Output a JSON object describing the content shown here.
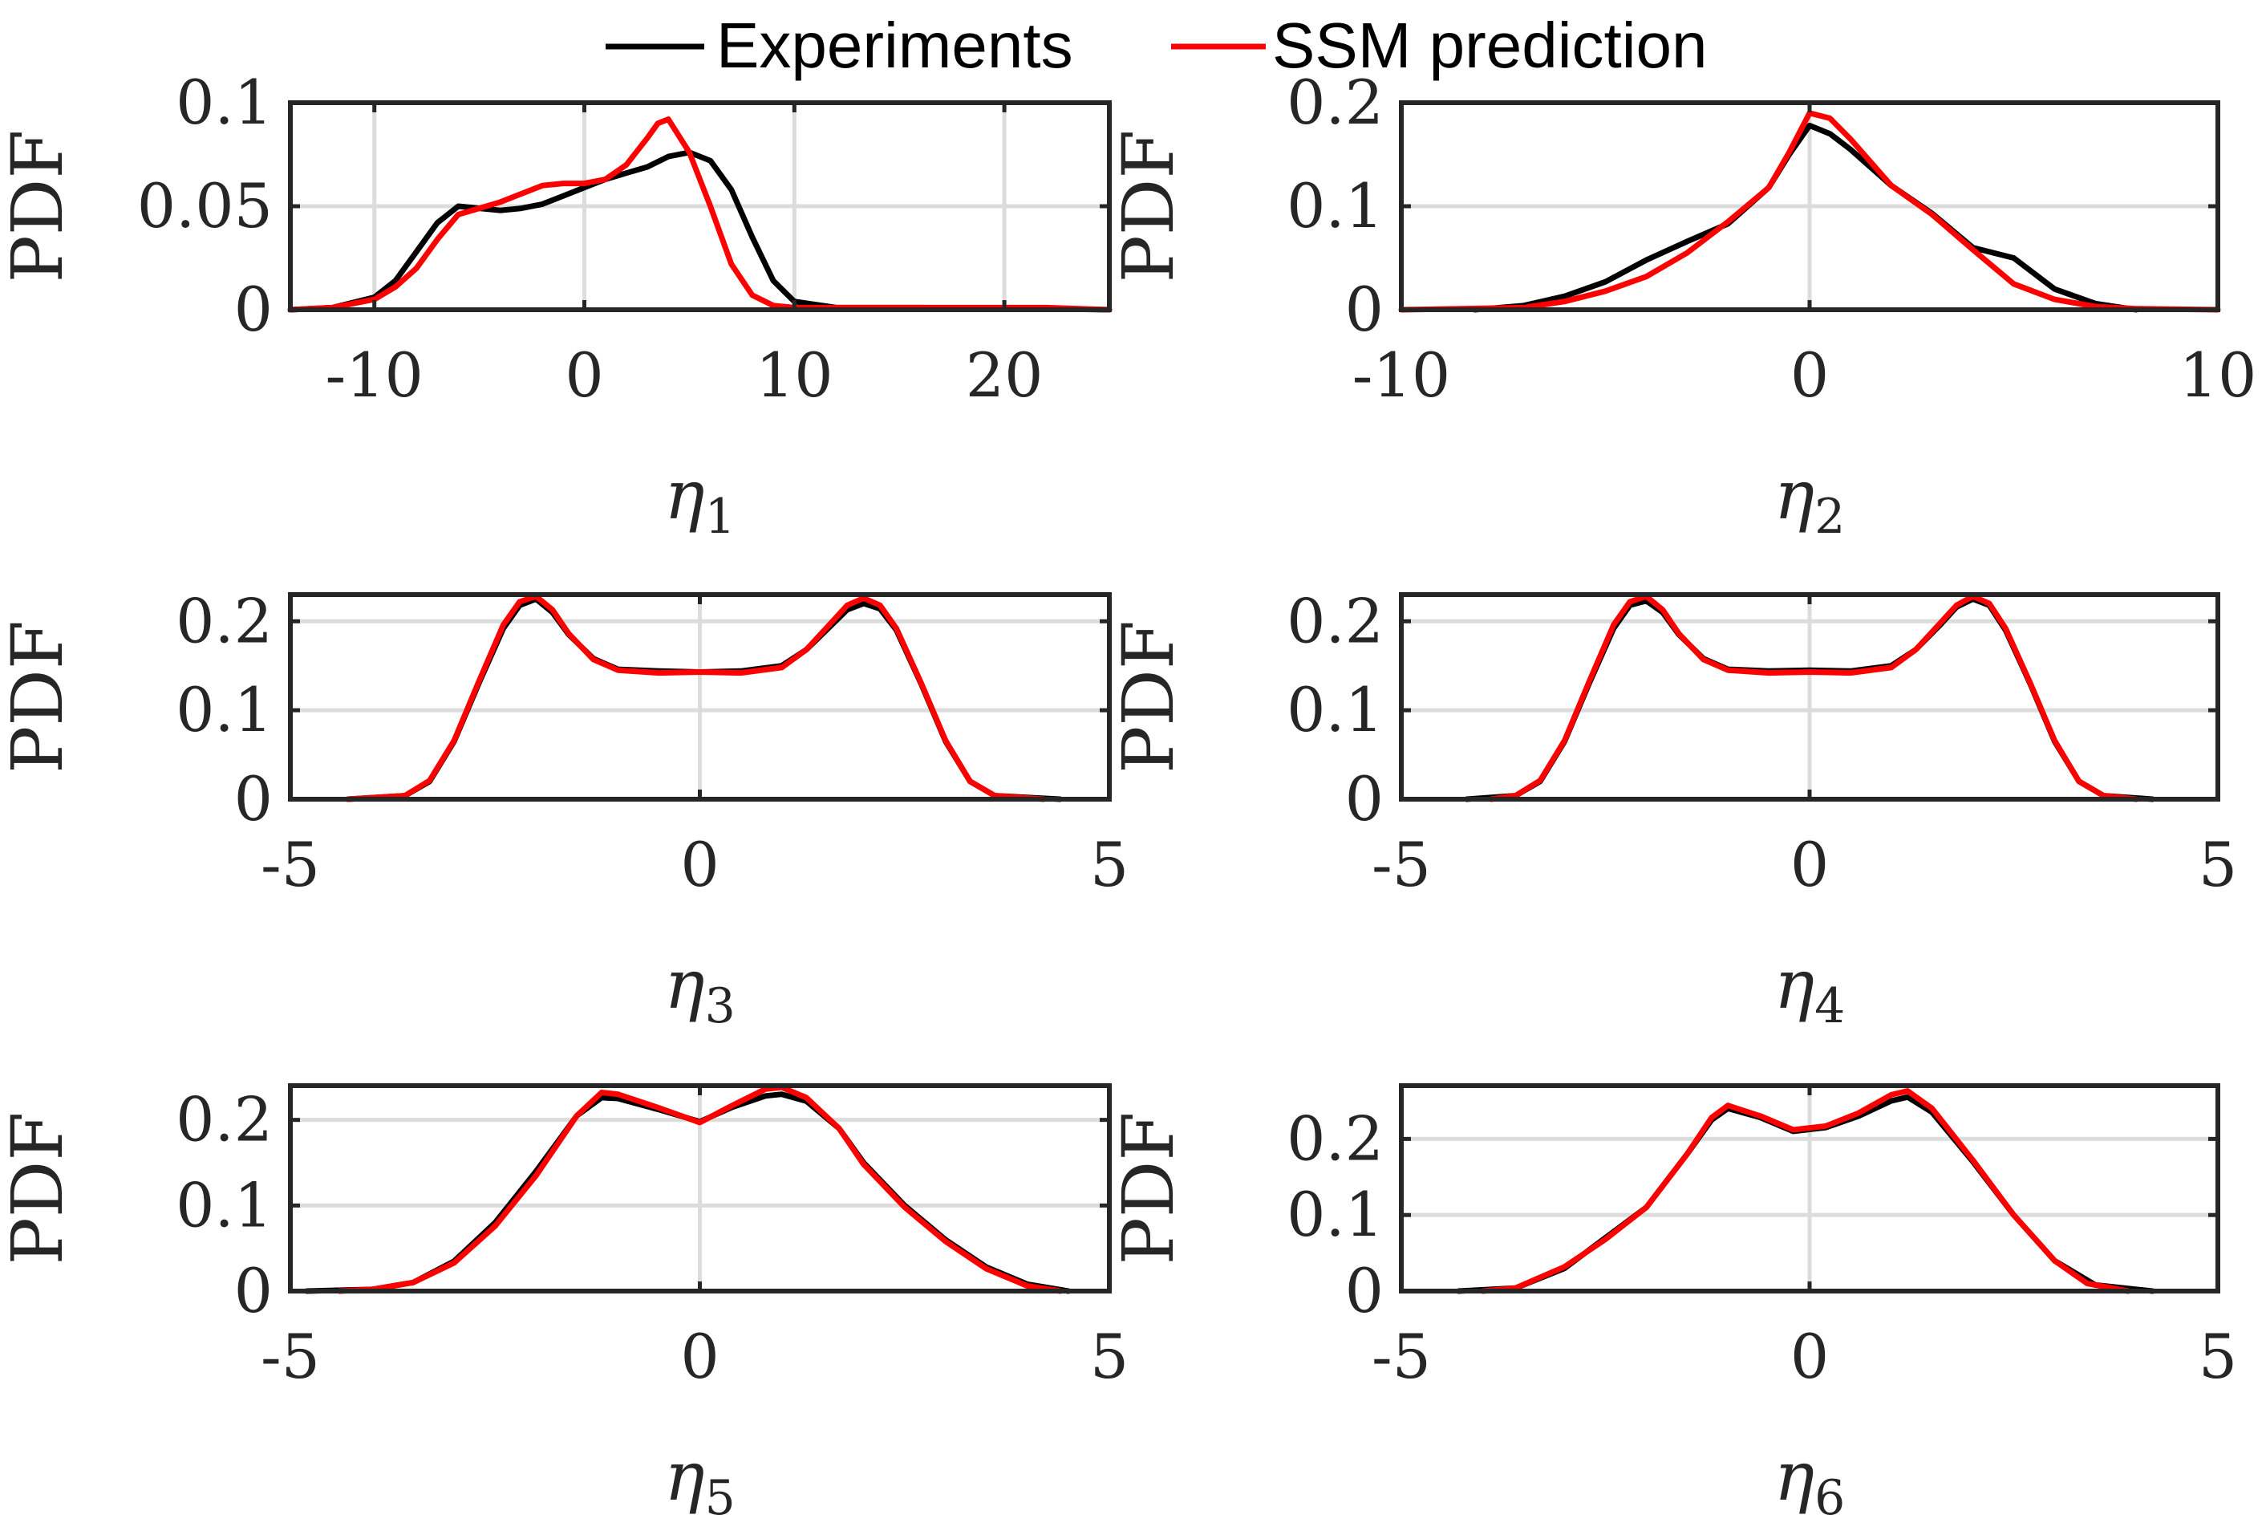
{
  "legend": {
    "items": [
      {
        "label": "Experiments",
        "color": "#000000"
      },
      {
        "label": "SSM prediction",
        "color": "#ff0000"
      }
    ]
  },
  "chart_data": [
    {
      "type": "line",
      "ylabel": "PDF",
      "xlabel_symbol": "η",
      "xlabel_subscript": "1",
      "xlim": [
        -14,
        25
      ],
      "ylim": [
        0,
        0.1
      ],
      "xticks": [
        -10,
        0,
        10,
        20
      ],
      "xtick_labels": [
        "-10",
        "0",
        "10",
        "20"
      ],
      "yticks": [
        0,
        0.05,
        0.1
      ],
      "ytick_labels": [
        "0",
        "0.05",
        "0.1"
      ],
      "grid": true,
      "series": [
        {
          "name": "Experiments",
          "color": "#000000",
          "x": [
            -14,
            -12,
            -10,
            -9,
            -8,
            -7,
            -6,
            -5,
            -4,
            -3,
            -2,
            -1,
            0,
            1,
            2,
            3,
            4,
            5,
            6,
            7,
            8,
            9,
            10,
            12,
            16,
            22,
            25
          ],
          "y": [
            0,
            0.001,
            0.006,
            0.014,
            0.028,
            0.042,
            0.05,
            0.049,
            0.048,
            0.049,
            0.051,
            0.055,
            0.059,
            0.063,
            0.066,
            0.069,
            0.074,
            0.076,
            0.072,
            0.058,
            0.035,
            0.014,
            0.004,
            0.001,
            0.001,
            0.0005,
            0
          ]
        },
        {
          "name": "SSM prediction",
          "color": "#ff0000",
          "x": [
            -14,
            -12,
            -10,
            -9,
            -8,
            -7,
            -6,
            -5,
            -4,
            -3,
            -2,
            -1,
            0,
            1,
            2,
            3,
            3.5,
            4,
            5,
            6,
            7,
            8,
            9,
            10,
            12,
            16,
            22,
            25
          ],
          "y": [
            0,
            0.001,
            0.005,
            0.011,
            0.02,
            0.034,
            0.046,
            0.049,
            0.052,
            0.056,
            0.06,
            0.061,
            0.061,
            0.063,
            0.07,
            0.083,
            0.09,
            0.092,
            0.076,
            0.05,
            0.022,
            0.007,
            0.002,
            0.001,
            0.001,
            0.001,
            0.001,
            0
          ]
        }
      ]
    },
    {
      "type": "line",
      "ylabel": "PDF",
      "xlabel_symbol": "η",
      "xlabel_subscript": "2",
      "xlim": [
        -10,
        10
      ],
      "ylim": [
        0,
        0.2
      ],
      "xticks": [
        -10,
        0,
        10
      ],
      "xtick_labels": [
        "-10",
        "0",
        "10"
      ],
      "yticks": [
        0,
        0.1,
        0.2
      ],
      "ytick_labels": [
        "0",
        "0.1",
        "0.2"
      ],
      "grid": true,
      "series": [
        {
          "name": "Experiments",
          "color": "#000000",
          "x": [
            -8.2,
            -7,
            -6,
            -5,
            -4,
            -3,
            -2,
            -1,
            -0.5,
            0,
            0.5,
            1,
            2,
            3,
            4,
            5,
            6,
            7,
            8
          ],
          "y": [
            0,
            0.004,
            0.013,
            0.027,
            0.048,
            0.066,
            0.083,
            0.118,
            0.15,
            0.178,
            0.17,
            0.155,
            0.12,
            0.093,
            0.06,
            0.05,
            0.02,
            0.006,
            0
          ]
        },
        {
          "name": "SSM prediction",
          "color": "#ff0000",
          "x": [
            -10,
            -7,
            -6,
            -5,
            -4,
            -3,
            -2,
            -1,
            -0.5,
            0,
            0.5,
            1,
            2,
            3,
            4,
            5,
            6,
            7,
            8,
            10
          ],
          "y": [
            0,
            0.002,
            0.008,
            0.018,
            0.032,
            0.055,
            0.085,
            0.118,
            0.152,
            0.19,
            0.185,
            0.165,
            0.12,
            0.092,
            0.058,
            0.025,
            0.01,
            0.003,
            0.001,
            0
          ]
        }
      ]
    },
    {
      "type": "line",
      "ylabel": "PDF",
      "xlabel_symbol": "η",
      "xlabel_subscript": "3",
      "xlim": [
        -5,
        5
      ],
      "ylim": [
        0,
        0.23
      ],
      "xticks": [
        -5,
        0,
        5
      ],
      "xtick_labels": [
        "-5",
        "0",
        "5"
      ],
      "yticks": [
        0,
        0.1,
        0.2
      ],
      "ytick_labels": [
        "0",
        "0.1",
        "0.2"
      ],
      "grid": true,
      "series": [
        {
          "name": "Experiments",
          "color": "#000000",
          "x": [
            -4.3,
            -3.6,
            -3.3,
            -3,
            -2.7,
            -2.4,
            -2.2,
            -2,
            -1.8,
            -1.6,
            -1.3,
            -1,
            -0.5,
            0,
            0.5,
            1,
            1.3,
            1.6,
            1.8,
            2,
            2.2,
            2.4,
            2.7,
            3,
            3.3,
            3.6,
            4.4
          ],
          "y": [
            0,
            0.004,
            0.02,
            0.065,
            0.13,
            0.192,
            0.218,
            0.225,
            0.21,
            0.185,
            0.158,
            0.146,
            0.144,
            0.143,
            0.144,
            0.15,
            0.168,
            0.195,
            0.213,
            0.22,
            0.214,
            0.19,
            0.13,
            0.065,
            0.02,
            0.004,
            0
          ]
        },
        {
          "name": "SSM prediction",
          "color": "#ff0000",
          "x": [
            -4.3,
            -3.6,
            -3.3,
            -3,
            -2.7,
            -2.4,
            -2.2,
            -2,
            -1.8,
            -1.6,
            -1.3,
            -1,
            -0.5,
            0,
            0.5,
            1,
            1.3,
            1.6,
            1.8,
            2,
            2.2,
            2.4,
            2.7,
            3,
            3.3,
            3.6,
            4.2
          ],
          "y": [
            0,
            0.004,
            0.021,
            0.066,
            0.132,
            0.196,
            0.222,
            0.228,
            0.213,
            0.186,
            0.157,
            0.145,
            0.142,
            0.143,
            0.142,
            0.148,
            0.168,
            0.198,
            0.218,
            0.226,
            0.218,
            0.192,
            0.131,
            0.066,
            0.02,
            0.004,
            0
          ]
        }
      ]
    },
    {
      "type": "line",
      "ylabel": "PDF",
      "xlabel_symbol": "η",
      "xlabel_subscript": "4",
      "xlim": [
        -5,
        5
      ],
      "ylim": [
        0,
        0.23
      ],
      "xticks": [
        -5,
        0,
        5
      ],
      "xtick_labels": [
        "-5",
        "0",
        "5"
      ],
      "yticks": [
        0,
        0.1,
        0.2
      ],
      "ytick_labels": [
        "0",
        "0.1",
        "0.2"
      ],
      "grid": true,
      "series": [
        {
          "name": "Experiments",
          "color": "#000000",
          "x": [
            -4.2,
            -3.6,
            -3.3,
            -3,
            -2.7,
            -2.4,
            -2.2,
            -2,
            -1.8,
            -1.6,
            -1.3,
            -1,
            -0.5,
            0,
            0.5,
            1,
            1.3,
            1.6,
            1.8,
            2,
            2.2,
            2.4,
            2.7,
            3,
            3.3,
            3.6,
            4.2
          ],
          "y": [
            0,
            0.004,
            0.02,
            0.065,
            0.13,
            0.192,
            0.218,
            0.223,
            0.21,
            0.185,
            0.158,
            0.146,
            0.144,
            0.145,
            0.144,
            0.15,
            0.168,
            0.196,
            0.216,
            0.225,
            0.218,
            0.19,
            0.13,
            0.065,
            0.02,
            0.004,
            0
          ]
        },
        {
          "name": "SSM prediction",
          "color": "#ff0000",
          "x": [
            -3.9,
            -3.6,
            -3.3,
            -3,
            -2.7,
            -2.4,
            -2.2,
            -2,
            -1.8,
            -1.6,
            -1.3,
            -1,
            -0.5,
            0,
            0.5,
            1,
            1.3,
            1.6,
            1.8,
            2,
            2.2,
            2.4,
            2.7,
            3,
            3.3,
            3.6,
            4
          ],
          "y": [
            0,
            0.004,
            0.021,
            0.066,
            0.132,
            0.196,
            0.222,
            0.228,
            0.213,
            0.186,
            0.157,
            0.145,
            0.142,
            0.143,
            0.142,
            0.148,
            0.168,
            0.198,
            0.218,
            0.228,
            0.22,
            0.192,
            0.131,
            0.066,
            0.02,
            0.004,
            0
          ]
        }
      ]
    },
    {
      "type": "line",
      "ylabel": "PDF",
      "xlabel_symbol": "η",
      "xlabel_subscript": "5",
      "xlim": [
        -5,
        5
      ],
      "ylim": [
        0,
        0.24
      ],
      "xticks": [
        -5,
        0,
        5
      ],
      "xtick_labels": [
        "-5",
        "0",
        "5"
      ],
      "yticks": [
        0,
        0.1,
        0.2
      ],
      "ytick_labels": [
        "0",
        "0.1",
        "0.2"
      ],
      "grid": true,
      "series": [
        {
          "name": "Experiments",
          "color": "#000000",
          "x": [
            -4.8,
            -4,
            -3.5,
            -3,
            -2.5,
            -2,
            -1.5,
            -1.2,
            -1,
            -0.5,
            0,
            0.4,
            0.8,
            1,
            1.3,
            1.7,
            2,
            2.5,
            3,
            3.5,
            4,
            4.5
          ],
          "y": [
            0,
            0.002,
            0.01,
            0.035,
            0.08,
            0.14,
            0.205,
            0.226,
            0.225,
            0.212,
            0.198,
            0.215,
            0.228,
            0.23,
            0.222,
            0.19,
            0.15,
            0.1,
            0.06,
            0.028,
            0.008,
            0
          ]
        },
        {
          "name": "SSM prediction",
          "color": "#ff0000",
          "x": [
            -4.4,
            -4,
            -3.5,
            -3,
            -2.5,
            -2,
            -1.5,
            -1.2,
            -1,
            -0.5,
            0,
            0.4,
            0.8,
            1,
            1.3,
            1.7,
            2,
            2.5,
            3,
            3.5,
            4,
            4.4
          ],
          "y": [
            0,
            0.002,
            0.01,
            0.033,
            0.076,
            0.135,
            0.205,
            0.232,
            0.23,
            0.214,
            0.197,
            0.217,
            0.236,
            0.238,
            0.226,
            0.19,
            0.148,
            0.098,
            0.058,
            0.026,
            0.006,
            0
          ]
        }
      ]
    },
    {
      "type": "line",
      "ylabel": "PDF",
      "xlabel_symbol": "η",
      "xlabel_subscript": "6",
      "xlim": [
        -5,
        5
      ],
      "ylim": [
        0,
        0.27
      ],
      "xticks": [
        -5,
        0,
        5
      ],
      "xtick_labels": [
        "-5",
        "0",
        "5"
      ],
      "yticks": [
        0,
        0.1,
        0.2
      ],
      "ytick_labels": [
        "0",
        "0.1",
        "0.2"
      ],
      "grid": true,
      "series": [
        {
          "name": "Experiments",
          "color": "#000000",
          "x": [
            -4.3,
            -3.6,
            -3,
            -2.5,
            -2,
            -1.5,
            -1.2,
            -1,
            -0.6,
            -0.2,
            0.2,
            0.6,
            1,
            1.2,
            1.5,
            2,
            2.5,
            3,
            3.5,
            4.2
          ],
          "y": [
            0,
            0.004,
            0.03,
            0.07,
            0.11,
            0.18,
            0.225,
            0.24,
            0.228,
            0.21,
            0.215,
            0.23,
            0.25,
            0.255,
            0.235,
            0.17,
            0.1,
            0.04,
            0.008,
            0
          ]
        },
        {
          "name": "SSM prediction",
          "color": "#ff0000",
          "x": [
            -4.0,
            -3.6,
            -3,
            -2.5,
            -2,
            -1.5,
            -1.2,
            -1,
            -0.6,
            -0.2,
            0.2,
            0.6,
            1,
            1.2,
            1.5,
            2,
            2.5,
            3,
            3.4,
            3.9
          ],
          "y": [
            0,
            0.004,
            0.032,
            0.068,
            0.11,
            0.18,
            0.228,
            0.244,
            0.23,
            0.212,
            0.217,
            0.234,
            0.258,
            0.263,
            0.24,
            0.172,
            0.1,
            0.04,
            0.01,
            0
          ]
        }
      ]
    }
  ]
}
